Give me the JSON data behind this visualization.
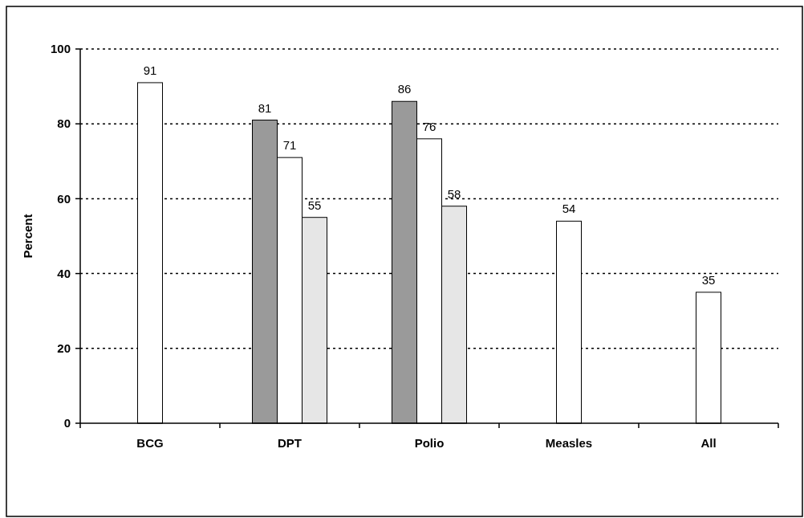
{
  "chart_data": {
    "type": "bar",
    "ylabel": "Percent",
    "categories": [
      "BCG",
      "DPT",
      "Polio",
      "Measles",
      "All"
    ],
    "series": [
      {
        "color": "#9a9a9a",
        "values": [
          null,
          81,
          86,
          null,
          null
        ]
      },
      {
        "color": "#ffffff",
        "values": [
          91,
          71,
          76,
          54,
          35
        ]
      },
      {
        "color": "#e6e6e6",
        "values": [
          null,
          55,
          58,
          null,
          null
        ]
      }
    ],
    "ylim": [
      0,
      100
    ],
    "yticks": [
      0,
      20,
      40,
      60,
      80,
      100
    ],
    "grid": "y",
    "data_labels": true
  }
}
